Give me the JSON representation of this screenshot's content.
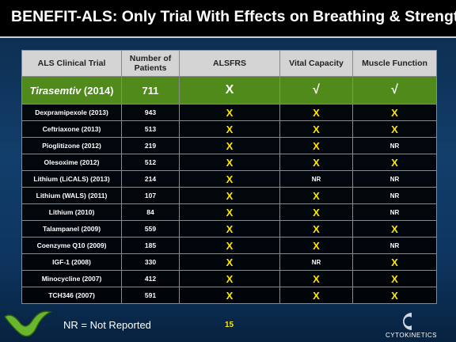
{
  "header": {
    "title": "BENEFIT-ALS: Only Trial With Effects on Breathing & Strength"
  },
  "table": {
    "columns": [
      "ALS Clinical Trial",
      "Number of Patients",
      "ALSFRS",
      "Vital Capacity",
      "Muscle Function"
    ],
    "highlight": {
      "name": "Tirasemtiv",
      "year": "(2014)",
      "patients": 711,
      "alsfrs": "X",
      "vital_capacity": "√",
      "muscle_function": "√"
    },
    "rows": [
      [
        "Dexpramipexole (2013)",
        943,
        "X",
        "X",
        "X"
      ],
      [
        "Ceftriaxone (2013)",
        513,
        "X",
        "X",
        "X"
      ],
      [
        "Pioglitizone (2012)",
        219,
        "X",
        "X",
        "NR"
      ],
      [
        "Olesoxime (2012)",
        512,
        "X",
        "X",
        "X"
      ],
      [
        "Lithium (LiCALS) (2013)",
        214,
        "X",
        "NR",
        "NR"
      ],
      [
        "Lithium (WALS) (2011)",
        107,
        "X",
        "X",
        "NR"
      ],
      [
        "Lithium (2010)",
        84,
        "X",
        "X",
        "NR"
      ],
      [
        "Talampanel (2009)",
        559,
        "X",
        "X",
        "X"
      ],
      [
        "Coenzyme Q10 (2009)",
        185,
        "X",
        "X",
        "NR"
      ],
      [
        "IGF-1  (2008)",
        330,
        "X",
        "NR",
        "X"
      ],
      [
        "Minocycline (2007)",
        412,
        "X",
        "X",
        "X"
      ],
      [
        "TCH346 (2007)",
        591,
        "X",
        "X",
        "X"
      ]
    ]
  },
  "footer": {
    "note": "NR = Not Reported",
    "page": "15",
    "company": "CYTOKINETICS"
  }
}
